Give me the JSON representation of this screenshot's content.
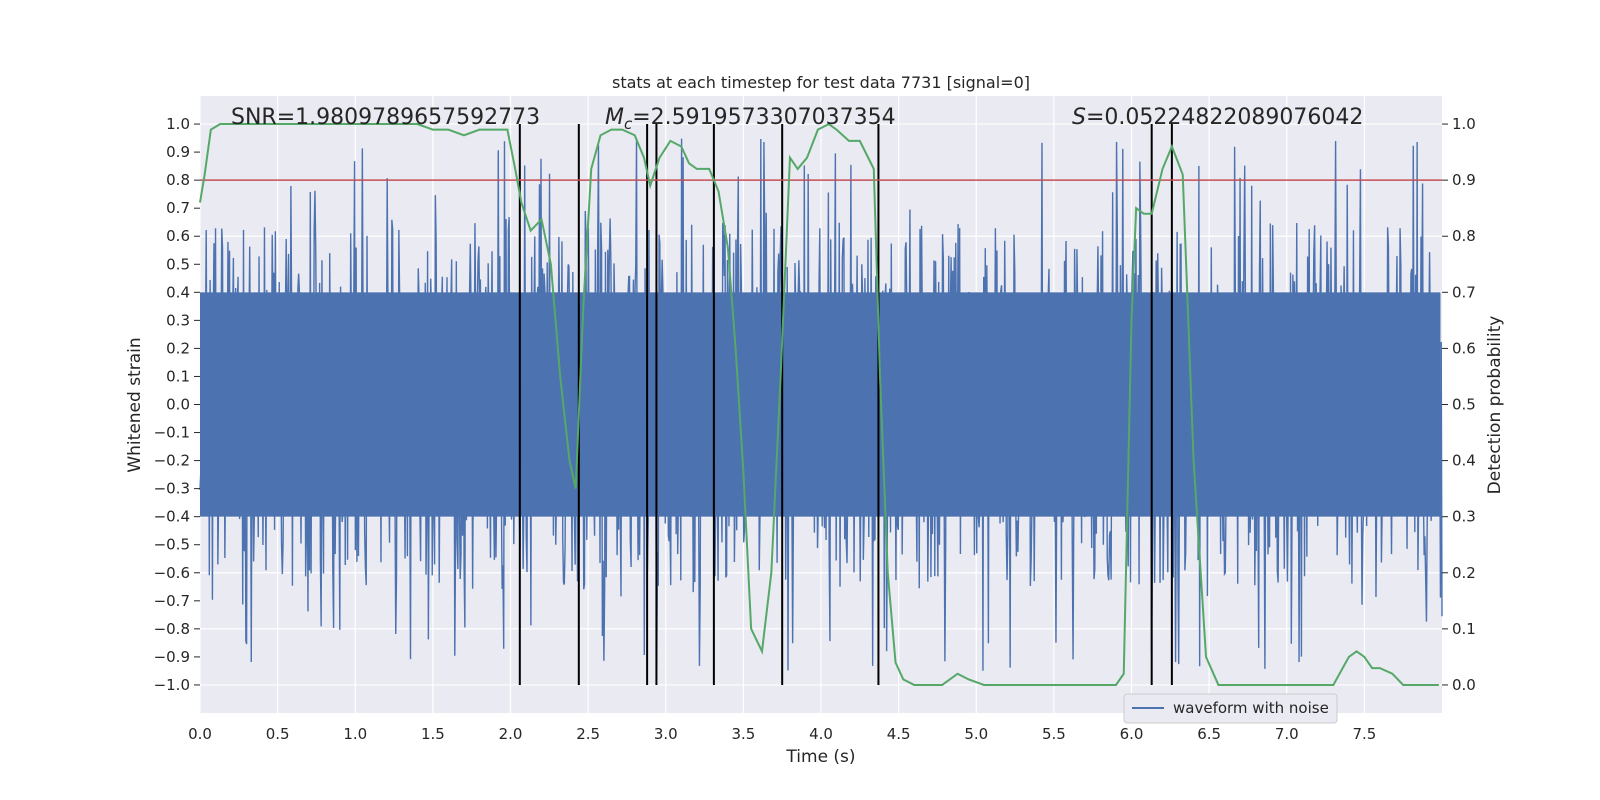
{
  "chart_data": {
    "type": "line",
    "title": "stats at each timestep for test data 7731 [signal=0]",
    "xlabel": "Time (s)",
    "ylabel_left": "Whitened strain",
    "ylabel_right": "Detection probability",
    "xlim": [
      0,
      8
    ],
    "ylim_left": [
      -1.1,
      1.1
    ],
    "ylim_right": [
      -0.05,
      1.05
    ],
    "x_ticks": [
      0.0,
      0.5,
      1.0,
      1.5,
      2.0,
      2.5,
      3.0,
      3.5,
      4.0,
      4.5,
      5.0,
      5.5,
      6.0,
      6.5,
      7.0,
      7.5
    ],
    "x_tick_labels": [
      "0.0",
      "0.5",
      "1.0",
      "1.5",
      "2.0",
      "2.5",
      "3.0",
      "3.5",
      "4.0",
      "4.5",
      "5.0",
      "5.5",
      "6.0",
      "6.5",
      "7.0",
      "7.5"
    ],
    "y_left_ticks": [
      1.0,
      0.9,
      0.8,
      0.7,
      0.6,
      0.5,
      0.4,
      0.3,
      0.2,
      0.1,
      0.0,
      -0.1,
      -0.2,
      -0.3,
      -0.4,
      -0.5,
      -0.6,
      -0.7,
      -0.8,
      -0.9,
      -1.0
    ],
    "y_left_tick_labels": [
      "1.0",
      "0.9",
      "0.8",
      "0.7",
      "0.6",
      "0.5",
      "0.4",
      "0.3",
      "0.2",
      "0.1",
      "0.0",
      "−0.1",
      "−0.2",
      "−0.3",
      "−0.4",
      "−0.5",
      "−0.6",
      "−0.7",
      "−0.8",
      "−0.9",
      "−1.0"
    ],
    "y_right_ticks": [
      1.0,
      0.9,
      0.8,
      0.7,
      0.6,
      0.5,
      0.4,
      0.3,
      0.2,
      0.1,
      0.0
    ],
    "y_right_tick_labels": [
      "1.0",
      "0.9",
      "0.8",
      "0.7",
      "0.6",
      "0.5",
      "0.4",
      "0.3",
      "0.2",
      "0.1",
      "0.0"
    ],
    "annotations": {
      "snr": "SNR=1.9809789657592773",
      "mc_symbol": "M",
      "mc_sub": "c",
      "mc_value": "=2.5919573307037354",
      "s_symbol": "S",
      "s_value": "=0.05224822089076042"
    },
    "threshold": 0.9,
    "vertical_lines_x": [
      2.06,
      2.44,
      2.88,
      2.94,
      3.31,
      3.75,
      4.37,
      6.13,
      6.26
    ],
    "detection_probability": {
      "name": "detection probability",
      "x": [
        0.0,
        0.03,
        0.07,
        0.13,
        0.2,
        0.4,
        0.6,
        0.8,
        1.0,
        1.2,
        1.4,
        1.5,
        1.6,
        1.7,
        1.8,
        1.9,
        1.98,
        2.03,
        2.07,
        2.13,
        2.2,
        2.26,
        2.32,
        2.38,
        2.42,
        2.47,
        2.52,
        2.58,
        2.65,
        2.72,
        2.8,
        2.86,
        2.9,
        2.96,
        3.03,
        3.1,
        3.15,
        3.2,
        3.28,
        3.34,
        3.4,
        3.45,
        3.5,
        3.55,
        3.62,
        3.68,
        3.74,
        3.8,
        3.85,
        3.91,
        3.98,
        4.05,
        4.1,
        4.18,
        4.25,
        4.34,
        4.38,
        4.43,
        4.48,
        4.53,
        4.6,
        4.68,
        4.78,
        4.88,
        4.95,
        5.05,
        5.2,
        5.35,
        5.5,
        5.7,
        5.9,
        5.95,
        6.0,
        6.03,
        6.08,
        6.13,
        6.2,
        6.26,
        6.33,
        6.4,
        6.48,
        6.56,
        6.62,
        6.7,
        6.8,
        6.9,
        7.0,
        7.1,
        7.2,
        7.3,
        7.4,
        7.45,
        7.5,
        7.55,
        7.6,
        7.68,
        7.75,
        7.85,
        7.9,
        7.98
      ],
      "y": [
        0.86,
        0.91,
        0.99,
        1.0,
        1.0,
        1.0,
        1.0,
        1.0,
        1.0,
        1.0,
        1.0,
        0.99,
        0.99,
        0.98,
        0.99,
        0.99,
        0.99,
        0.92,
        0.86,
        0.81,
        0.83,
        0.75,
        0.55,
        0.4,
        0.35,
        0.68,
        0.92,
        0.98,
        0.99,
        0.99,
        0.98,
        0.94,
        0.89,
        0.94,
        0.97,
        0.96,
        0.93,
        0.92,
        0.92,
        0.88,
        0.78,
        0.6,
        0.38,
        0.1,
        0.06,
        0.2,
        0.55,
        0.94,
        0.92,
        0.94,
        0.99,
        1.0,
        0.99,
        0.97,
        0.97,
        0.92,
        0.55,
        0.2,
        0.04,
        0.01,
        0.0,
        0.0,
        0.0,
        0.02,
        0.01,
        0.0,
        0.0,
        0.0,
        0.0,
        0.0,
        0.0,
        0.02,
        0.65,
        0.85,
        0.84,
        0.84,
        0.92,
        0.96,
        0.91,
        0.4,
        0.05,
        0.0,
        0.0,
        0.0,
        0.0,
        0.0,
        0.0,
        0.0,
        0.0,
        0.0,
        0.05,
        0.06,
        0.05,
        0.03,
        0.03,
        0.02,
        0.0,
        0.0,
        0.0,
        0.0
      ]
    },
    "waveform": {
      "name": "waveform with noise",
      "duration": 8,
      "n_samples": 1600,
      "typical_abs_amplitude": 0.4,
      "max_value": 1.0,
      "min_value": -0.95
    },
    "legend": {
      "location": "lower-right",
      "entries": [
        "waveform with noise"
      ]
    },
    "colors": {
      "background": "#eaeaf2",
      "grid": "#ffffff",
      "waveform": "#4c72b0",
      "probability": "#55a868",
      "threshold": "#c44e52",
      "vertical_lines": "#000000"
    }
  }
}
